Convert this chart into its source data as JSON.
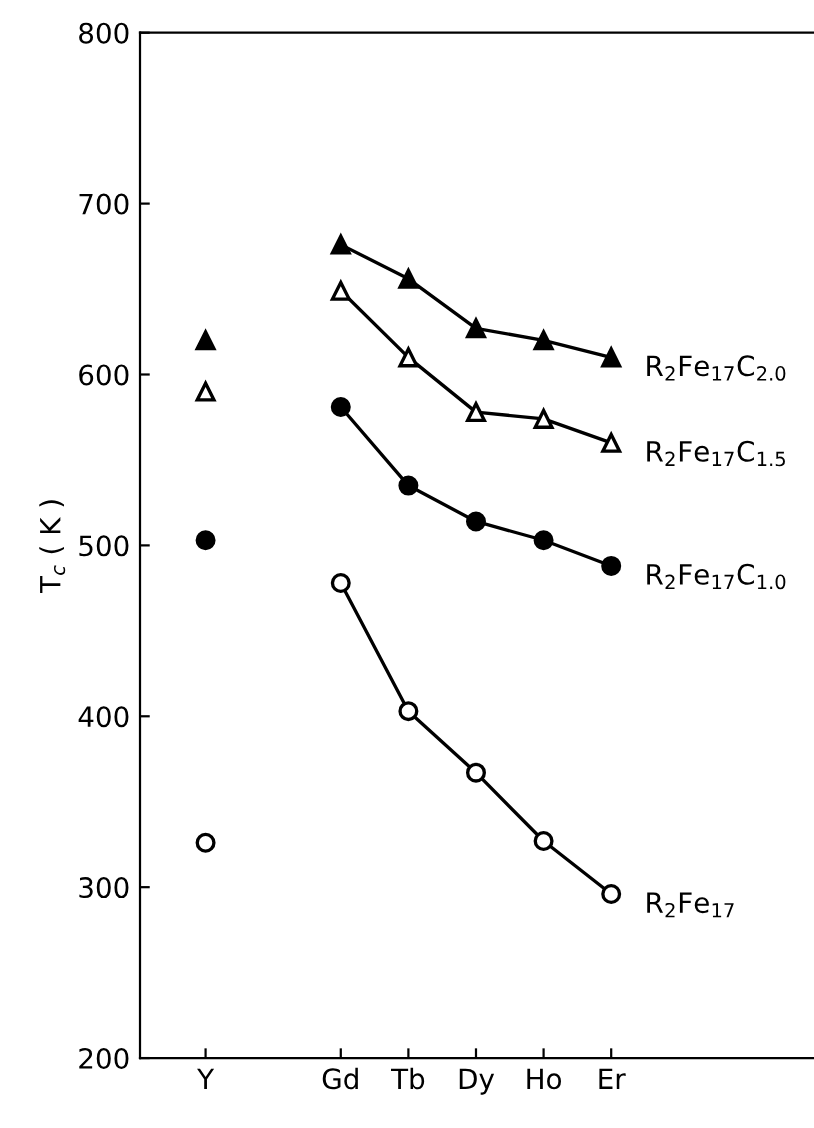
{
  "chart_data": {
    "type": "line",
    "ylabel": "T$_{c}$ ( K )",
    "categories": [
      "Y",
      null,
      "Gd",
      "Tb",
      "Dy",
      "Ho",
      "Er"
    ],
    "series": [
      {
        "name": "R$_{2}$Fe$_{17}$C$_{2.0}$",
        "color": "#000000",
        "marker": "triangle",
        "values": [
          620,
          null,
          676,
          656,
          627,
          620,
          610
        ]
      },
      {
        "name": "R$_{2}$Fe$_{17}$C$_{1.5}$",
        "color": "#000000",
        "marker": "triangle",
        "values": [
          590,
          null,
          649,
          610,
          578,
          574,
          560
        ]
      },
      {
        "name": "R$_{2}$Fe$_{17}$C$_{1.0}$",
        "color": "#000000",
        "marker": "circle",
        "values": [
          503,
          null,
          581,
          535,
          514,
          503,
          488
        ]
      },
      {
        "name": "R$_{2}$Fe$_{17}$",
        "color": "#000000",
        "marker": "circle",
        "values": [
          326,
          null,
          478,
          403,
          367,
          327,
          296
        ]
      }
    ],
    "ylim": [
      200,
      800
    ],
    "yticks": [
      200,
      300,
      400,
      500,
      600,
      700,
      800
    ],
    "grid": false,
    "legend": false,
    "line_style": "solid"
  }
}
